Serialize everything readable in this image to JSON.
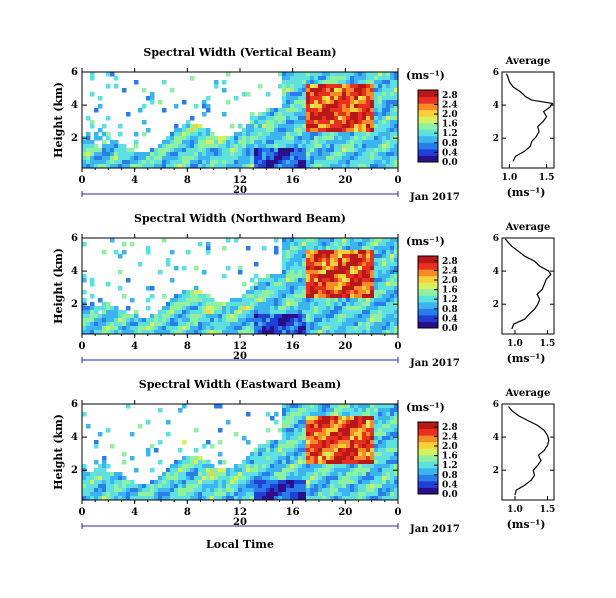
{
  "figure": {
    "date_label": "Jan 2017",
    "xlabel": "Local Time",
    "colorbar_unit": "(ms⁻¹)",
    "avg_title": "Average",
    "avg_xlabel": "(ms⁻¹)",
    "ylabel": "Height (km)",
    "x_ticks": [
      "0",
      "4",
      "8",
      "12",
      "16",
      "20",
      "0"
    ],
    "day_mark": "20",
    "y_ticks": [
      "6",
      "4",
      "2"
    ],
    "avg_y_ticks": [
      "6",
      "4",
      "2"
    ],
    "colorbar_ticks": [
      "0.0",
      "0.4",
      "0.8",
      "1.2",
      "1.6",
      "2.0",
      "2.4",
      "2.8"
    ],
    "colormap": [
      "#2a0f8a",
      "#1f3fd6",
      "#2a7de8",
      "#3cb4f0",
      "#5fe0e0",
      "#8ff0a0",
      "#d8f060",
      "#f8d038",
      "#f88a28",
      "#e83020",
      "#b81818"
    ],
    "colors": {
      "axis": "#000000",
      "day_bar": "#2a2aa0",
      "line": "#000000"
    }
  },
  "chart_data": [
    {
      "type": "heatmap",
      "title": "Spectral Width (Vertical Beam)",
      "xlabel": "Local Time",
      "ylabel": "Height (km)",
      "xlim": [
        0,
        24
      ],
      "ylim": [
        0.2,
        6
      ],
      "colorbar": {
        "label": "(ms⁻¹)",
        "range": [
          0.0,
          3.0
        ],
        "ticks": [
          0.0,
          0.4,
          0.8,
          1.2,
          1.6,
          2.0,
          2.4,
          2.8
        ]
      },
      "average_profile": {
        "title": "Average",
        "xlabel": "(ms⁻¹)",
        "xlim": [
          0.9,
          1.6
        ],
        "xticks": [
          "1.0",
          "1.5"
        ],
        "points": [
          [
            1.05,
            0.6
          ],
          [
            1.08,
            0.9
          ],
          [
            1.2,
            1.2
          ],
          [
            1.28,
            1.5
          ],
          [
            1.3,
            1.8
          ],
          [
            1.36,
            2.1
          ],
          [
            1.4,
            2.4
          ],
          [
            1.38,
            2.7
          ],
          [
            1.45,
            3.0
          ],
          [
            1.5,
            3.3
          ],
          [
            1.46,
            3.6
          ],
          [
            1.55,
            3.9
          ],
          [
            1.58,
            4.1
          ],
          [
            1.3,
            4.3
          ],
          [
            1.22,
            4.5
          ],
          [
            1.15,
            4.8
          ],
          [
            1.05,
            5.1
          ],
          [
            1.0,
            5.4
          ],
          [
            0.98,
            5.7
          ],
          [
            0.96,
            5.9
          ]
        ]
      }
    },
    {
      "type": "heatmap",
      "title": "Spectral Width (Northward Beam)",
      "xlabel": "Local Time",
      "ylabel": "Height (km)",
      "xlim": [
        0,
        24
      ],
      "ylim": [
        0.2,
        6
      ],
      "colorbar": {
        "label": "(ms⁻¹)",
        "range": [
          0.0,
          3.0
        ],
        "ticks": [
          0.0,
          0.4,
          0.8,
          1.2,
          1.6,
          2.0,
          2.4,
          2.8
        ]
      },
      "average_profile": {
        "title": "Average",
        "xlabel": "(ms⁻¹)",
        "xlim": [
          0.8,
          1.6
        ],
        "xticks": [
          "1.0",
          "1.5"
        ],
        "points": [
          [
            0.95,
            0.5
          ],
          [
            0.98,
            0.8
          ],
          [
            1.15,
            1.1
          ],
          [
            1.22,
            1.4
          ],
          [
            1.3,
            1.7
          ],
          [
            1.35,
            2.0
          ],
          [
            1.38,
            2.3
          ],
          [
            1.34,
            2.6
          ],
          [
            1.42,
            2.9
          ],
          [
            1.45,
            3.2
          ],
          [
            1.48,
            3.5
          ],
          [
            1.55,
            3.8
          ],
          [
            1.52,
            4.0
          ],
          [
            1.38,
            4.3
          ],
          [
            1.3,
            4.6
          ],
          [
            1.15,
            4.9
          ],
          [
            1.05,
            5.2
          ],
          [
            0.95,
            5.5
          ],
          [
            0.88,
            5.8
          ],
          [
            0.85,
            5.95
          ]
        ]
      }
    },
    {
      "type": "heatmap",
      "title": "Spectral Width (Eastward Beam)",
      "xlabel": "Local Time",
      "ylabel": "Height (km)",
      "xlim": [
        0,
        24
      ],
      "ylim": [
        0.2,
        6
      ],
      "colorbar": {
        "label": "(ms⁻¹)",
        "range": [
          0.0,
          3.0
        ],
        "ticks": [
          0.0,
          0.4,
          0.8,
          1.2,
          1.6,
          2.0,
          2.4,
          2.8
        ]
      },
      "average_profile": {
        "title": "Average",
        "xlabel": "(ms⁻¹)",
        "xlim": [
          0.8,
          1.6
        ],
        "xticks": [
          "1.0",
          "1.5"
        ],
        "points": [
          [
            1.0,
            0.5
          ],
          [
            1.02,
            0.8
          ],
          [
            1.15,
            1.1
          ],
          [
            1.25,
            1.4
          ],
          [
            1.3,
            1.7
          ],
          [
            1.28,
            2.0
          ],
          [
            1.35,
            2.3
          ],
          [
            1.4,
            2.6
          ],
          [
            1.36,
            2.9
          ],
          [
            1.45,
            3.2
          ],
          [
            1.5,
            3.5
          ],
          [
            1.52,
            3.8
          ],
          [
            1.5,
            4.1
          ],
          [
            1.45,
            4.4
          ],
          [
            1.35,
            4.7
          ],
          [
            1.2,
            5.0
          ],
          [
            1.05,
            5.3
          ],
          [
            0.95,
            5.6
          ],
          [
            0.9,
            5.85
          ]
        ]
      }
    }
  ]
}
